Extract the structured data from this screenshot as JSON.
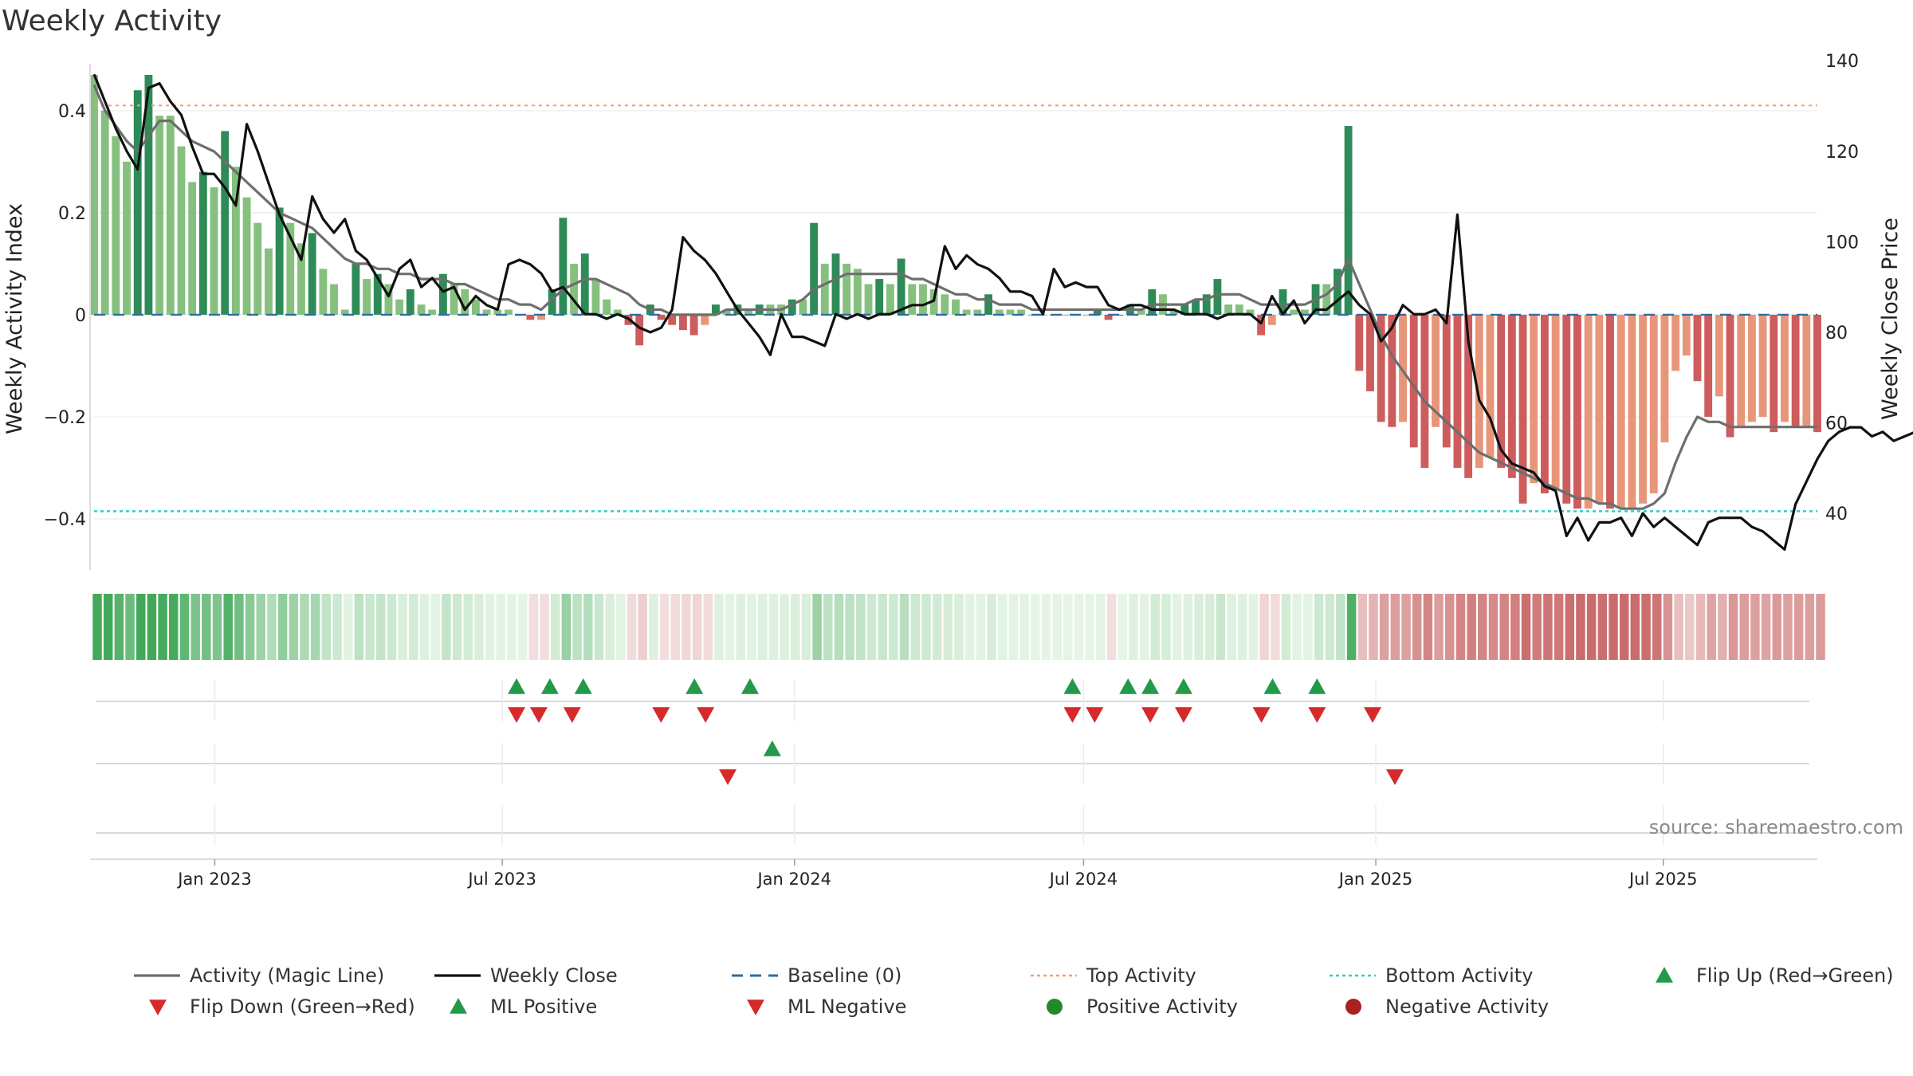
{
  "chart_data": {
    "type": "bar",
    "title": "Weekly Activity",
    "ylabel_left": "Weekly Activity Index",
    "ylabel_right": "Weekly Close Price",
    "ylim_left": [
      -0.5,
      0.52
    ],
    "ylim_right": [
      27.5,
      142.5
    ],
    "yticks_left": [
      {
        "v": 0.4,
        "label": "0.4"
      },
      {
        "v": 0.2,
        "label": "0.2"
      },
      {
        "v": 0,
        "label": "0"
      },
      {
        "v": -0.2,
        "label": "−0.2"
      },
      {
        "v": -0.4,
        "label": "−0.4"
      }
    ],
    "yticks_right": [
      {
        "v": 140,
        "label": "140"
      },
      {
        "v": 120,
        "label": "120"
      },
      {
        "v": 100,
        "label": "100"
      },
      {
        "v": 80,
        "label": "80"
      },
      {
        "v": 60,
        "label": "60"
      },
      {
        "v": 40,
        "label": "40"
      }
    ],
    "x_start": "2022-10-17",
    "x_end": "2025-10-06",
    "xticks": [
      {
        "date": "2023-01-01",
        "label": "Jan 2023"
      },
      {
        "date": "2023-07-01",
        "label": "Jul 2023"
      },
      {
        "date": "2024-01-01",
        "label": "Jan 2024"
      },
      {
        "date": "2024-07-01",
        "label": "Jul 2024"
      },
      {
        "date": "2025-01-01",
        "label": "Jan 2025"
      },
      {
        "date": "2025-07-01",
        "label": "Jul 2025"
      }
    ],
    "top_activity": 0.41,
    "bottom_activity": -0.385,
    "baseline": 0,
    "series": [
      {
        "name": "Weekly Activity Index",
        "values": [
          0.47,
          0.4,
          0.35,
          0.3,
          0.44,
          0.47,
          0.39,
          0.39,
          0.33,
          0.26,
          0.28,
          0.25,
          0.36,
          0.29,
          0.23,
          0.18,
          0.13,
          0.21,
          0.18,
          0.14,
          0.16,
          0.09,
          0.06,
          0.01,
          0.1,
          0.07,
          0.08,
          0.06,
          0.03,
          0.05,
          0.02,
          0.01,
          0.08,
          0.06,
          0.05,
          0.03,
          0.01,
          0.01,
          0.01,
          0.0,
          -0.01,
          -0.01,
          0.05,
          0.19,
          0.1,
          0.12,
          0.07,
          0.03,
          0.01,
          -0.02,
          -0.06,
          0.02,
          -0.01,
          -0.02,
          -0.03,
          -0.04,
          -0.02,
          0.02,
          0.01,
          0.02,
          0.01,
          0.02,
          0.02,
          0.02,
          0.03,
          0.03,
          0.18,
          0.1,
          0.12,
          0.1,
          0.09,
          0.06,
          0.07,
          0.06,
          0.11,
          0.06,
          0.06,
          0.05,
          0.04,
          0.03,
          0.01,
          0.01,
          0.04,
          0.01,
          0.01,
          0.01,
          0.0,
          0.0,
          0.0,
          0.0,
          0.0,
          0.0,
          0.01,
          -0.01,
          0.0,
          0.02,
          0.01,
          0.05,
          0.04,
          0.01,
          0.02,
          0.03,
          0.04,
          0.07,
          0.02,
          0.02,
          0.01,
          -0.04,
          -0.02,
          0.05,
          0.01,
          0.01,
          0.06,
          0.06,
          0.09,
          0.37,
          -0.11,
          -0.15,
          -0.21,
          -0.22,
          -0.21,
          -0.26,
          -0.3,
          -0.22,
          -0.26,
          -0.3,
          -0.32,
          -0.3,
          -0.28,
          -0.3,
          -0.32,
          -0.37,
          -0.33,
          -0.35,
          -0.34,
          -0.37,
          -0.38,
          -0.38,
          -0.37,
          -0.38,
          -0.38,
          -0.38,
          -0.37,
          -0.35,
          -0.25,
          -0.11,
          -0.08,
          -0.13,
          -0.2,
          -0.16,
          -0.24,
          -0.22,
          -0.21,
          -0.2,
          -0.23,
          -0.21,
          -0.22,
          -0.22,
          -0.23
        ]
      },
      {
        "name": "Activity (Magic Line)",
        "values": [
          0.45,
          0.4,
          0.37,
          0.34,
          0.32,
          0.35,
          0.38,
          0.38,
          0.36,
          0.34,
          0.33,
          0.32,
          0.3,
          0.28,
          0.26,
          0.24,
          0.22,
          0.2,
          0.19,
          0.18,
          0.17,
          0.15,
          0.13,
          0.11,
          0.1,
          0.1,
          0.09,
          0.09,
          0.08,
          0.08,
          0.07,
          0.07,
          0.07,
          0.06,
          0.06,
          0.05,
          0.04,
          0.03,
          0.03,
          0.02,
          0.02,
          0.01,
          0.03,
          0.05,
          0.06,
          0.07,
          0.07,
          0.06,
          0.05,
          0.04,
          0.02,
          0.01,
          0.01,
          0.0,
          0.0,
          0.0,
          0.0,
          0.0,
          0.01,
          0.01,
          0.01,
          0.01,
          0.01,
          0.01,
          0.02,
          0.03,
          0.05,
          0.06,
          0.07,
          0.08,
          0.08,
          0.08,
          0.08,
          0.08,
          0.08,
          0.07,
          0.07,
          0.06,
          0.05,
          0.04,
          0.04,
          0.03,
          0.03,
          0.02,
          0.02,
          0.02,
          0.01,
          0.01,
          0.01,
          0.01,
          0.01,
          0.01,
          0.01,
          0.01,
          0.01,
          0.01,
          0.01,
          0.02,
          0.02,
          0.02,
          0.02,
          0.03,
          0.03,
          0.04,
          0.04,
          0.04,
          0.03,
          0.02,
          0.02,
          0.02,
          0.02,
          0.02,
          0.03,
          0.04,
          0.06,
          0.11,
          0.06,
          0.01,
          -0.04,
          -0.08,
          -0.11,
          -0.14,
          -0.17,
          -0.19,
          -0.21,
          -0.23,
          -0.25,
          -0.27,
          -0.28,
          -0.29,
          -0.3,
          -0.31,
          -0.32,
          -0.33,
          -0.34,
          -0.35,
          -0.36,
          -0.36,
          -0.37,
          -0.37,
          -0.38,
          -0.38,
          -0.38,
          -0.37,
          -0.35,
          -0.29,
          -0.24,
          -0.2,
          -0.21,
          -0.21,
          -0.22,
          -0.22,
          -0.22,
          -0.22,
          -0.22,
          -0.22,
          -0.22,
          -0.22,
          -0.22
        ]
      },
      {
        "name": "Weekly Close",
        "values": [
          137,
          131,
          125,
          120,
          116,
          134,
          135,
          131,
          128,
          121,
          115,
          115,
          112,
          108,
          126,
          120,
          113,
          106,
          101,
          96,
          110,
          105,
          102,
          105,
          98,
          96,
          92,
          88,
          94,
          96,
          90,
          92,
          89,
          90,
          85,
          88,
          86,
          85,
          95,
          96,
          95,
          93,
          89,
          90,
          87,
          84,
          84,
          83,
          84,
          83,
          81,
          80,
          81,
          85,
          101,
          98,
          96,
          93,
          89,
          85,
          82,
          79,
          75,
          84,
          79,
          79,
          78,
          77,
          84,
          83,
          84,
          83,
          84,
          84,
          85,
          86,
          86,
          87,
          99,
          94,
          97,
          95,
          94,
          92,
          89,
          89,
          88,
          84,
          94,
          90,
          91,
          90,
          90,
          86,
          85,
          86,
          86,
          85,
          85,
          85,
          84,
          84,
          84,
          83,
          84,
          84,
          84,
          82,
          88,
          84,
          87,
          82,
          85,
          85,
          87,
          89,
          86,
          84,
          78,
          81,
          86,
          84,
          84,
          85,
          82,
          106,
          78,
          65,
          61,
          54,
          51,
          50,
          49,
          46,
          45,
          35,
          39,
          34,
          38,
          38,
          39,
          35,
          40,
          37,
          39,
          37,
          35,
          33,
          38,
          39,
          39,
          39,
          37,
          36,
          34,
          32,
          42,
          47,
          52,
          56,
          58,
          59,
          59,
          57,
          58,
          56,
          57,
          58,
          59,
          58
        ]
      }
    ],
    "markers": {
      "flip_up_row1": [
        "2023-07-10",
        "2023-07-31",
        "2023-08-21",
        "2023-10-30",
        "2023-12-04",
        "2024-06-24",
        "2024-07-29",
        "2024-08-12",
        "2024-09-02",
        "2024-10-28",
        "2024-11-25"
      ],
      "flip_down_row1": [
        "2023-07-10",
        "2023-07-24",
        "2023-08-14",
        "2023-10-09",
        "2023-11-06",
        "2024-06-24",
        "2024-07-08",
        "2024-08-12",
        "2024-09-02",
        "2024-10-21",
        "2024-11-25",
        "2024-12-30"
      ],
      "ml_positive_row2": [
        "2023-12-18"
      ],
      "ml_negative_row2": [
        "2023-11-20"
      ],
      "flip_down_row2": [
        "2025-01-13"
      ]
    },
    "legend": [
      {
        "label": "Activity (Magic Line)",
        "symbol": "line",
        "color": "#6e6e6e"
      },
      {
        "label": "Weekly Close",
        "symbol": "line",
        "color": "#111111"
      },
      {
        "label": "Baseline (0)",
        "symbol": "dash",
        "color": "#2b6ca3"
      },
      {
        "label": "Top Activity",
        "symbol": "dot",
        "color": "#f0a070"
      },
      {
        "label": "Bottom Activity",
        "symbol": "dot",
        "color": "#33cccc"
      },
      {
        "label": "Flip Up (Red→Green)",
        "symbol": "tri-up",
        "color": "#23994a"
      },
      {
        "label": "Flip Down (Green→Red)",
        "symbol": "tri-down",
        "color": "#d62a2a"
      },
      {
        "label": "ML Positive",
        "symbol": "tri-up",
        "color": "#23994a"
      },
      {
        "label": "ML Negative",
        "symbol": "tri-down",
        "color": "#d62a2a"
      },
      {
        "label": "Positive Activity",
        "symbol": "circle",
        "color": "#238a2a"
      },
      {
        "label": "Negative Activity",
        "symbol": "circle",
        "color": "#a82222"
      }
    ],
    "source": "source: sharemaestro.com",
    "colors": {
      "pos_strong": "#2e8b57",
      "pos_light": "#86c07e",
      "neg_strong": "#cd5c5c",
      "neg_light": "#e8967a",
      "magic": "#6e6e6e",
      "close": "#111111"
    }
  }
}
